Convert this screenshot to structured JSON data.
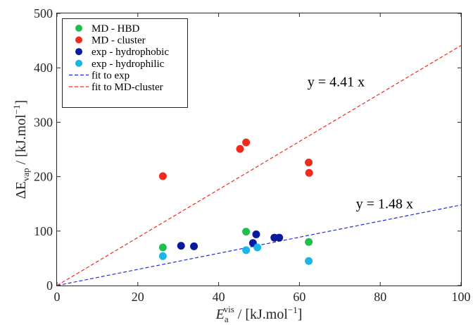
{
  "chart_data": {
    "type": "scatter",
    "xlabel": {
      "main": "E",
      "sub": "a",
      "sup": "vis",
      "unit": " / [kJ.mol",
      "unit_sup": "−1",
      "unit_end": "]"
    },
    "ylabel": {
      "prefix": "ΔE",
      "sub": "vap",
      "unit": " / [kJ.mol",
      "unit_sup": "−1",
      "unit_end": "]"
    },
    "xlim": [
      0,
      100
    ],
    "ylim": [
      0,
      500
    ],
    "xticks": [
      "0",
      "20",
      "40",
      "60",
      "80",
      "100"
    ],
    "yticks": [
      "0",
      "100",
      "200",
      "300",
      "400",
      "500"
    ],
    "grid": false,
    "legend_position": "top-left",
    "series": [
      {
        "name": "MD - HBD",
        "color": "#1fbf4e",
        "points": [
          [
            26.2,
            70
          ],
          [
            46.8,
            99
          ],
          [
            62.3,
            80
          ]
        ]
      },
      {
        "name": "MD - cluster",
        "color": "#ef2b1e",
        "points": [
          [
            26.2,
            201
          ],
          [
            45.3,
            251
          ],
          [
            46.8,
            263
          ],
          [
            62.3,
            226
          ],
          [
            62.4,
            207
          ]
        ]
      },
      {
        "name": "exp - hydrophobic",
        "color": "#0a1a9c",
        "points": [
          [
            30.7,
            73
          ],
          [
            33.9,
            72
          ],
          [
            48.5,
            78
          ],
          [
            49.3,
            94
          ],
          [
            53.8,
            88
          ],
          [
            55.0,
            88
          ]
        ]
      },
      {
        "name": "exp - hydrophilic",
        "color": "#1ab6ea",
        "points": [
          [
            26.2,
            54
          ],
          [
            46.8,
            65
          ],
          [
            49.6,
            70
          ],
          [
            62.3,
            45
          ]
        ]
      }
    ],
    "fits": [
      {
        "name": "fit to exp",
        "color": "#1f2fd6",
        "slope": 1.48,
        "label": "y = 1.48 x",
        "label_pos": [
          74,
          142
        ]
      },
      {
        "name": "fit to MD-cluster",
        "color": "#ef2b1e",
        "slope": 4.41,
        "label": "y = 4.41 x",
        "label_pos": [
          62,
          366
        ]
      }
    ]
  }
}
